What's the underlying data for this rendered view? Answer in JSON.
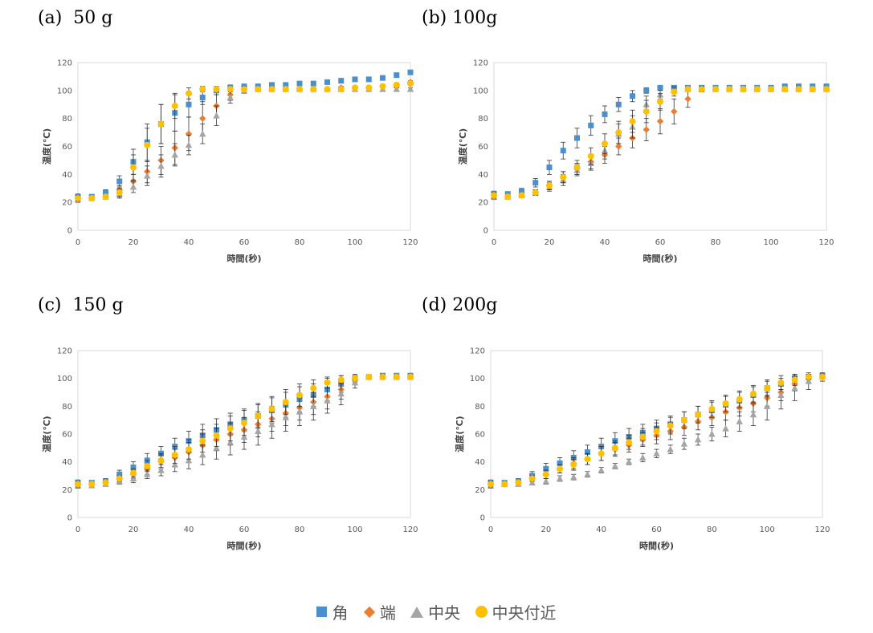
{
  "panel_titles": [
    "(a)  50 g",
    "(b) 100g",
    "(c)  150 g",
    "(d) 200g"
  ],
  "legend": [
    {
      "name": "角",
      "marker": "square",
      "color": "#4a8fce"
    },
    {
      "name": "端",
      "marker": "diamond",
      "color": "#ed7d31"
    },
    {
      "name": "中央",
      "marker": "triangle",
      "color": "#a5a5a5"
    },
    {
      "name": "中央付近",
      "marker": "circle",
      "color": "#ffc000"
    }
  ],
  "chart_data": [
    {
      "type": "scatter",
      "title": "(a)  50 g",
      "xlabel": "時間(秒)",
      "ylabel": "温度(℃)",
      "xlim": [
        0,
        120
      ],
      "ylim": [
        0,
        120
      ],
      "xticks": [
        0,
        20,
        40,
        60,
        80,
        100,
        120
      ],
      "yticks": [
        0,
        20,
        40,
        60,
        80,
        100,
        120
      ],
      "x": [
        0,
        5,
        10,
        15,
        20,
        25,
        30,
        35,
        40,
        45,
        50,
        55,
        60,
        65,
        70,
        75,
        80,
        85,
        90,
        95,
        100,
        105,
        110,
        115,
        120
      ],
      "series": [
        {
          "name": "角",
          "values": [
            24,
            24,
            27,
            35,
            49,
            63,
            76,
            84,
            90,
            95,
            100,
            102,
            103,
            103,
            104,
            104,
            105,
            105,
            106,
            107,
            108,
            108,
            109,
            111,
            113
          ],
          "errors": [
            2,
            1,
            2,
            4,
            9,
            13,
            14,
            13,
            9,
            5,
            3,
            2,
            1,
            1,
            1,
            1,
            1,
            1,
            1,
            1,
            1,
            1,
            1,
            1,
            1
          ]
        },
        {
          "name": "端",
          "values": [
            23,
            23,
            24,
            29,
            35,
            42,
            50,
            59,
            69,
            80,
            89,
            97,
            101,
            101,
            101,
            101,
            101,
            101,
            101,
            102,
            102,
            102,
            103,
            103,
            106
          ],
          "errors": [
            2,
            1,
            1,
            3,
            5,
            8,
            10,
            12,
            12,
            12,
            8,
            4,
            2,
            1,
            1,
            1,
            1,
            1,
            1,
            1,
            1,
            1,
            1,
            1,
            1
          ]
        },
        {
          "name": "中央",
          "values": [
            22,
            23,
            24,
            26,
            31,
            39,
            46,
            54,
            61,
            69,
            82,
            95,
            100,
            101,
            101,
            101,
            101,
            101,
            101,
            101,
            101,
            101,
            101,
            101,
            101
          ],
          "errors": [
            2,
            1,
            1,
            3,
            4,
            7,
            8,
            8,
            7,
            7,
            7,
            4,
            2,
            1,
            1,
            1,
            1,
            1,
            1,
            1,
            1,
            1,
            1,
            1,
            1
          ]
        },
        {
          "name": "中央付近",
          "values": [
            23,
            23,
            24,
            27,
            45,
            61,
            76,
            89,
            98,
            101,
            101,
            101,
            101,
            101,
            101,
            101,
            101,
            101,
            101,
            101,
            102,
            102,
            103,
            104,
            105
          ],
          "errors": [
            2,
            1,
            1,
            3,
            9,
            12,
            14,
            9,
            4,
            2,
            1,
            1,
            1,
            1,
            1,
            1,
            1,
            1,
            1,
            1,
            1,
            1,
            1,
            1,
            1
          ]
        }
      ]
    },
    {
      "type": "scatter",
      "title": "(b) 100g",
      "xlabel": "時間(秒)",
      "ylabel": "温度(℃)",
      "xlim": [
        0,
        120
      ],
      "ylim": [
        0,
        120
      ],
      "xticks": [
        0,
        20,
        40,
        60,
        80,
        100,
        120
      ],
      "yticks": [
        0,
        20,
        40,
        60,
        80,
        100,
        120
      ],
      "x": [
        0,
        5,
        10,
        15,
        20,
        25,
        30,
        35,
        40,
        45,
        50,
        55,
        60,
        65,
        70,
        75,
        80,
        85,
        90,
        95,
        100,
        105,
        110,
        115,
        120
      ],
      "series": [
        {
          "name": "角",
          "values": [
            26,
            26,
            28,
            34,
            45,
            57,
            66,
            75,
            83,
            90,
            96,
            100,
            102,
            102,
            102,
            102,
            102,
            102,
            102,
            102,
            102,
            103,
            103,
            103,
            103
          ],
          "errors": [
            2,
            1,
            2,
            3,
            5,
            6,
            7,
            7,
            6,
            5,
            4,
            2,
            1,
            1,
            1,
            1,
            1,
            1,
            1,
            1,
            1,
            1,
            1,
            1,
            1
          ]
        },
        {
          "name": "端",
          "values": [
            25,
            24,
            25,
            27,
            32,
            38,
            44,
            49,
            54,
            60,
            66,
            72,
            78,
            85,
            94,
            101,
            101,
            101,
            101,
            101,
            101,
            101,
            101,
            101,
            101
          ],
          "errors": [
            2,
            1,
            1,
            2,
            3,
            4,
            4,
            5,
            6,
            6,
            7,
            8,
            9,
            9,
            6,
            2,
            1,
            1,
            1,
            1,
            1,
            1,
            1,
            1,
            1
          ]
        },
        {
          "name": "中央",
          "values": [
            24,
            24,
            25,
            27,
            31,
            36,
            43,
            48,
            57,
            69,
            74,
            90,
            97,
            101,
            101,
            101,
            101,
            101,
            101,
            101,
            101,
            101,
            101,
            101,
            101
          ],
          "errors": [
            2,
            1,
            1,
            2,
            3,
            4,
            4,
            5,
            6,
            7,
            8,
            6,
            3,
            2,
            1,
            1,
            1,
            1,
            1,
            1,
            1,
            1,
            1,
            1,
            1
          ]
        },
        {
          "name": "中央付近",
          "values": [
            25,
            24,
            25,
            27,
            32,
            38,
            45,
            53,
            62,
            70,
            78,
            85,
            92,
            99,
            101,
            101,
            101,
            101,
            101,
            101,
            101,
            101,
            101,
            101,
            101
          ],
          "errors": [
            2,
            1,
            1,
            2,
            3,
            4,
            5,
            6,
            7,
            8,
            8,
            8,
            6,
            3,
            1,
            1,
            1,
            1,
            1,
            1,
            1,
            1,
            1,
            1,
            1
          ]
        }
      ]
    },
    {
      "type": "scatter",
      "title": "(c)  150 g",
      "xlabel": "時間(秒)",
      "ylabel": "温度(℃)",
      "xlim": [
        0,
        120
      ],
      "ylim": [
        0,
        120
      ],
      "xticks": [
        0,
        20,
        40,
        60,
        80,
        100,
        120
      ],
      "yticks": [
        0,
        20,
        40,
        60,
        80,
        100,
        120
      ],
      "x": [
        0,
        5,
        10,
        15,
        20,
        25,
        30,
        35,
        40,
        45,
        50,
        55,
        60,
        65,
        70,
        75,
        80,
        85,
        90,
        95,
        100,
        105,
        110,
        115,
        120
      ],
      "series": [
        {
          "name": "角",
          "values": [
            25,
            25,
            26,
            31,
            36,
            41,
            46,
            51,
            55,
            59,
            63,
            67,
            70,
            73,
            77,
            81,
            85,
            88,
            92,
            96,
            100,
            101,
            102,
            102,
            102
          ],
          "errors": [
            2,
            1,
            2,
            3,
            4,
            5,
            5,
            6,
            7,
            8,
            8,
            8,
            8,
            8,
            9,
            9,
            9,
            8,
            8,
            6,
            3,
            1,
            1,
            1,
            1
          ]
        },
        {
          "name": "端",
          "values": [
            24,
            24,
            25,
            28,
            31,
            35,
            40,
            43,
            47,
            52,
            56,
            60,
            63,
            67,
            71,
            75,
            79,
            83,
            87,
            92,
            99,
            101,
            101,
            101,
            101
          ],
          "errors": [
            2,
            1,
            1,
            2,
            3,
            4,
            5,
            6,
            7,
            8,
            8,
            8,
            9,
            9,
            9,
            9,
            9,
            9,
            9,
            7,
            3,
            1,
            1,
            1,
            1
          ]
        },
        {
          "name": "中央",
          "values": [
            23,
            23,
            24,
            26,
            28,
            31,
            34,
            38,
            41,
            45,
            50,
            54,
            58,
            62,
            67,
            72,
            76,
            80,
            84,
            89,
            97,
            101,
            101,
            101,
            101
          ],
          "errors": [
            2,
            1,
            1,
            2,
            3,
            3,
            4,
            5,
            6,
            7,
            8,
            9,
            9,
            10,
            10,
            10,
            10,
            10,
            9,
            8,
            4,
            1,
            1,
            1,
            1
          ]
        },
        {
          "name": "中央付近",
          "values": [
            24,
            24,
            25,
            28,
            32,
            37,
            41,
            45,
            49,
            55,
            59,
            64,
            68,
            73,
            78,
            83,
            88,
            93,
            97,
            99,
            100,
            101,
            101,
            101,
            101
          ],
          "errors": [
            2,
            1,
            1,
            2,
            3,
            4,
            5,
            6,
            7,
            8,
            8,
            9,
            9,
            9,
            9,
            9,
            8,
            6,
            4,
            3,
            2,
            1,
            1,
            1,
            1
          ]
        }
      ]
    },
    {
      "type": "scatter",
      "title": "(d) 200g",
      "xlabel": "時間(秒)",
      "ylabel": "温度(℃)",
      "xlim": [
        0,
        120
      ],
      "ylim": [
        0,
        120
      ],
      "xticks": [
        0,
        20,
        40,
        60,
        80,
        100,
        120
      ],
      "yticks": [
        0,
        20,
        40,
        60,
        80,
        100,
        120
      ],
      "x": [
        0,
        5,
        10,
        15,
        20,
        25,
        30,
        35,
        40,
        45,
        50,
        55,
        60,
        65,
        70,
        75,
        80,
        85,
        90,
        95,
        100,
        105,
        110,
        115,
        120
      ],
      "series": [
        {
          "name": "角",
          "values": [
            25,
            25,
            26,
            30,
            35,
            39,
            43,
            47,
            51,
            55,
            58,
            61,
            64,
            67,
            70,
            74,
            77,
            81,
            84,
            88,
            93,
            96,
            100,
            101,
            102
          ],
          "errors": [
            2,
            1,
            2,
            3,
            4,
            4,
            5,
            5,
            6,
            6,
            6,
            6,
            6,
            6,
            6,
            6,
            6,
            6,
            6,
            6,
            5,
            4,
            3,
            2,
            1
          ]
        },
        {
          "name": "端",
          "values": [
            24,
            24,
            25,
            28,
            31,
            35,
            39,
            42,
            46,
            49,
            52,
            56,
            59,
            62,
            65,
            69,
            72,
            76,
            79,
            82,
            86,
            90,
            96,
            100,
            101
          ],
          "errors": [
            2,
            1,
            1,
            2,
            3,
            3,
            4,
            4,
            5,
            5,
            5,
            5,
            6,
            6,
            6,
            6,
            6,
            6,
            6,
            6,
            6,
            6,
            5,
            3,
            1
          ]
        },
        {
          "name": "中央",
          "values": [
            23,
            24,
            24,
            25,
            26,
            28,
            29,
            31,
            34,
            37,
            40,
            43,
            46,
            49,
            53,
            56,
            60,
            64,
            69,
            74,
            80,
            88,
            93,
            98,
            101
          ],
          "errors": [
            2,
            1,
            1,
            1,
            2,
            2,
            2,
            2,
            2,
            2,
            2,
            3,
            3,
            3,
            4,
            4,
            5,
            6,
            7,
            8,
            10,
            10,
            9,
            6,
            3
          ]
        },
        {
          "name": "中央付近",
          "values": [
            24,
            24,
            25,
            28,
            31,
            35,
            38,
            42,
            46,
            50,
            54,
            58,
            62,
            66,
            70,
            74,
            78,
            82,
            85,
            89,
            93,
            97,
            99,
            101,
            101
          ],
          "errors": [
            2,
            1,
            1,
            2,
            3,
            3,
            4,
            4,
            5,
            5,
            5,
            6,
            6,
            6,
            6,
            6,
            6,
            6,
            6,
            6,
            6,
            5,
            4,
            2,
            1
          ]
        }
      ]
    }
  ]
}
